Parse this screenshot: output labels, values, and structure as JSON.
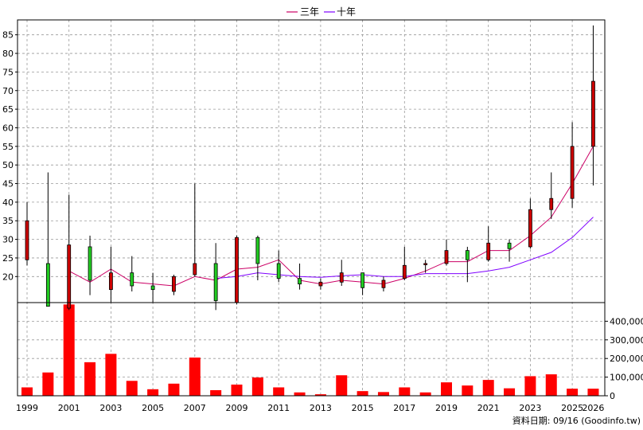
{
  "legend": [
    {
      "label": "三年",
      "color": "#cc0066"
    },
    {
      "label": "十年",
      "color": "#7f00ff"
    }
  ],
  "source_note": "資料日期: 09/16  (Goodinfo.tw)",
  "colors": {
    "up_candle": "#cc0000",
    "down_candle": "#22cc22",
    "volume_bar": "#ff0000",
    "grid": "#999999",
    "frame": "#000000"
  },
  "chart_data": {
    "type": "candlestick",
    "grid": true,
    "legend_position": "top-center",
    "x_tick_labels": [
      "1999",
      "2001",
      "2003",
      "2005",
      "2007",
      "2009",
      "2011",
      "2013",
      "2015",
      "2017",
      "2019",
      "2021",
      "2023",
      "2025",
      "2026"
    ],
    "price_axis": {
      "ylim": [
        13,
        89
      ],
      "ticks": [
        20,
        25,
        30,
        35,
        40,
        45,
        50,
        55,
        60,
        65,
        70,
        75,
        80,
        85
      ]
    },
    "volume_axis": {
      "ylim": [
        0,
        500000
      ],
      "ticks": [
        0,
        100000,
        200000,
        300000,
        400000
      ],
      "tick_labels": [
        "0",
        "100,000",
        "200,000",
        "300,000",
        "400,000"
      ]
    },
    "candles": [
      {
        "year": 1999,
        "open": 24.5,
        "close": 35.0,
        "high": 40.0,
        "low": 23.0
      },
      {
        "year": 2000,
        "open": 23.5,
        "close": 12.0,
        "high": 48.0,
        "low": 12.0
      },
      {
        "year": 2001,
        "open": 11.5,
        "close": 28.5,
        "high": 42.0,
        "low": 11.0
      },
      {
        "year": 2002,
        "open": 28.0,
        "close": 19.0,
        "high": 31.0,
        "low": 15.0
      },
      {
        "year": 2003,
        "open": 16.5,
        "close": 21.0,
        "high": 28.0,
        "low": 13.0
      },
      {
        "year": 2004,
        "open": 21.0,
        "close": 17.5,
        "high": 25.5,
        "low": 16.0
      },
      {
        "year": 2005,
        "open": 17.5,
        "close": 16.5,
        "high": 21.0,
        "low": 13.0
      },
      {
        "year": 2006,
        "open": 16.0,
        "close": 20.0,
        "high": 20.5,
        "low": 15.0
      },
      {
        "year": 2007,
        "open": 20.5,
        "close": 23.5,
        "high": 45.0,
        "low": 20.0
      },
      {
        "year": 2008,
        "open": 23.5,
        "close": 13.5,
        "high": 29.0,
        "low": 11.0
      },
      {
        "year": 2009,
        "open": 13.0,
        "close": 30.5,
        "high": 31.0,
        "low": 12.5
      },
      {
        "year": 2010,
        "open": 30.5,
        "close": 23.5,
        "high": 31.0,
        "low": 19.0
      },
      {
        "year": 2011,
        "open": 23.5,
        "close": 19.5,
        "high": 27.0,
        "low": 18.5
      },
      {
        "year": 2012,
        "open": 19.5,
        "close": 18.0,
        "high": 23.5,
        "low": 16.5
      },
      {
        "year": 2013,
        "open": 17.5,
        "close": 18.5,
        "high": 19.5,
        "low": 16.5
      },
      {
        "year": 2014,
        "open": 18.5,
        "close": 21.0,
        "high": 24.5,
        "low": 17.5
      },
      {
        "year": 2015,
        "open": 21.0,
        "close": 17.0,
        "high": 21.0,
        "low": 15.0
      },
      {
        "year": 2016,
        "open": 17.0,
        "close": 19.0,
        "high": 20.0,
        "low": 16.0
      },
      {
        "year": 2017,
        "open": 19.5,
        "close": 23.0,
        "high": 28.0,
        "low": 19.0
      },
      {
        "year": 2018,
        "open": 23.5,
        "close": 23.5,
        "high": 24.5,
        "low": 21.0
      },
      {
        "year": 2019,
        "open": 23.5,
        "close": 27.0,
        "high": 30.0,
        "low": 23.0
      },
      {
        "year": 2020,
        "open": 27.0,
        "close": 24.5,
        "high": 28.0,
        "low": 18.5
      },
      {
        "year": 2021,
        "open": 24.5,
        "close": 29.0,
        "high": 33.5,
        "low": 24.0
      },
      {
        "year": 2022,
        "open": 29.0,
        "close": 27.5,
        "high": 30.0,
        "low": 24.0
      },
      {
        "year": 2023,
        "open": 28.0,
        "close": 38.0,
        "high": 41.0,
        "low": 27.5
      },
      {
        "year": 2024,
        "open": 38.0,
        "close": 41.0,
        "high": 48.0,
        "low": 35.5
      },
      {
        "year": 2025,
        "open": 41.0,
        "close": 55.0,
        "high": 61.5,
        "low": 38.5
      },
      {
        "year": 2026,
        "open": 55.0,
        "close": 72.5,
        "high": 87.5,
        "low": 44.5
      }
    ],
    "series": [
      {
        "name": "三年",
        "years": [
          2001,
          2002,
          2003,
          2004,
          2005,
          2006,
          2007,
          2008,
          2009,
          2010,
          2011,
          2012,
          2013,
          2014,
          2015,
          2016,
          2017,
          2018,
          2019,
          2020,
          2021,
          2022,
          2023,
          2024,
          2025,
          2026
        ],
        "values": [
          21.5,
          18.5,
          22.0,
          18.5,
          18.0,
          17.5,
          20.0,
          19.0,
          22.0,
          22.5,
          24.5,
          19.0,
          18.0,
          19.0,
          18.5,
          18.0,
          19.5,
          21.5,
          24.0,
          24.0,
          27.0,
          27.0,
          31.0,
          36.0,
          45.0,
          55.0
        ]
      },
      {
        "name": "十年",
        "years": [
          2008,
          2009,
          2010,
          2011,
          2012,
          2013,
          2014,
          2015,
          2016,
          2017,
          2018,
          2019,
          2020,
          2021,
          2022,
          2023,
          2024,
          2025,
          2026
        ],
        "values": [
          19.5,
          20.0,
          21.0,
          20.5,
          20.0,
          19.8,
          20.2,
          20.5,
          20.0,
          20.0,
          20.8,
          20.8,
          20.8,
          21.5,
          22.5,
          24.5,
          26.5,
          30.5,
          36.0
        ]
      }
    ],
    "volume": [
      {
        "year": 1999,
        "value": 45000
      },
      {
        "year": 2000,
        "value": 125000
      },
      {
        "year": 2001,
        "value": 490000
      },
      {
        "year": 2002,
        "value": 180000
      },
      {
        "year": 2003,
        "value": 225000
      },
      {
        "year": 2004,
        "value": 80000
      },
      {
        "year": 2005,
        "value": 35000
      },
      {
        "year": 2006,
        "value": 65000
      },
      {
        "year": 2007,
        "value": 205000
      },
      {
        "year": 2008,
        "value": 30000
      },
      {
        "year": 2009,
        "value": 60000
      },
      {
        "year": 2010,
        "value": 98000
      },
      {
        "year": 2011,
        "value": 45000
      },
      {
        "year": 2012,
        "value": 18000
      },
      {
        "year": 2013,
        "value": 8000
      },
      {
        "year": 2014,
        "value": 110000
      },
      {
        "year": 2015,
        "value": 25000
      },
      {
        "year": 2016,
        "value": 20000
      },
      {
        "year": 2017,
        "value": 45000
      },
      {
        "year": 2018,
        "value": 18000
      },
      {
        "year": 2019,
        "value": 72000
      },
      {
        "year": 2020,
        "value": 55000
      },
      {
        "year": 2021,
        "value": 85000
      },
      {
        "year": 2022,
        "value": 40000
      },
      {
        "year": 2023,
        "value": 105000
      },
      {
        "year": 2024,
        "value": 115000
      },
      {
        "year": 2025,
        "value": 38000
      },
      {
        "year": 2026,
        "value": 38000
      }
    ]
  }
}
